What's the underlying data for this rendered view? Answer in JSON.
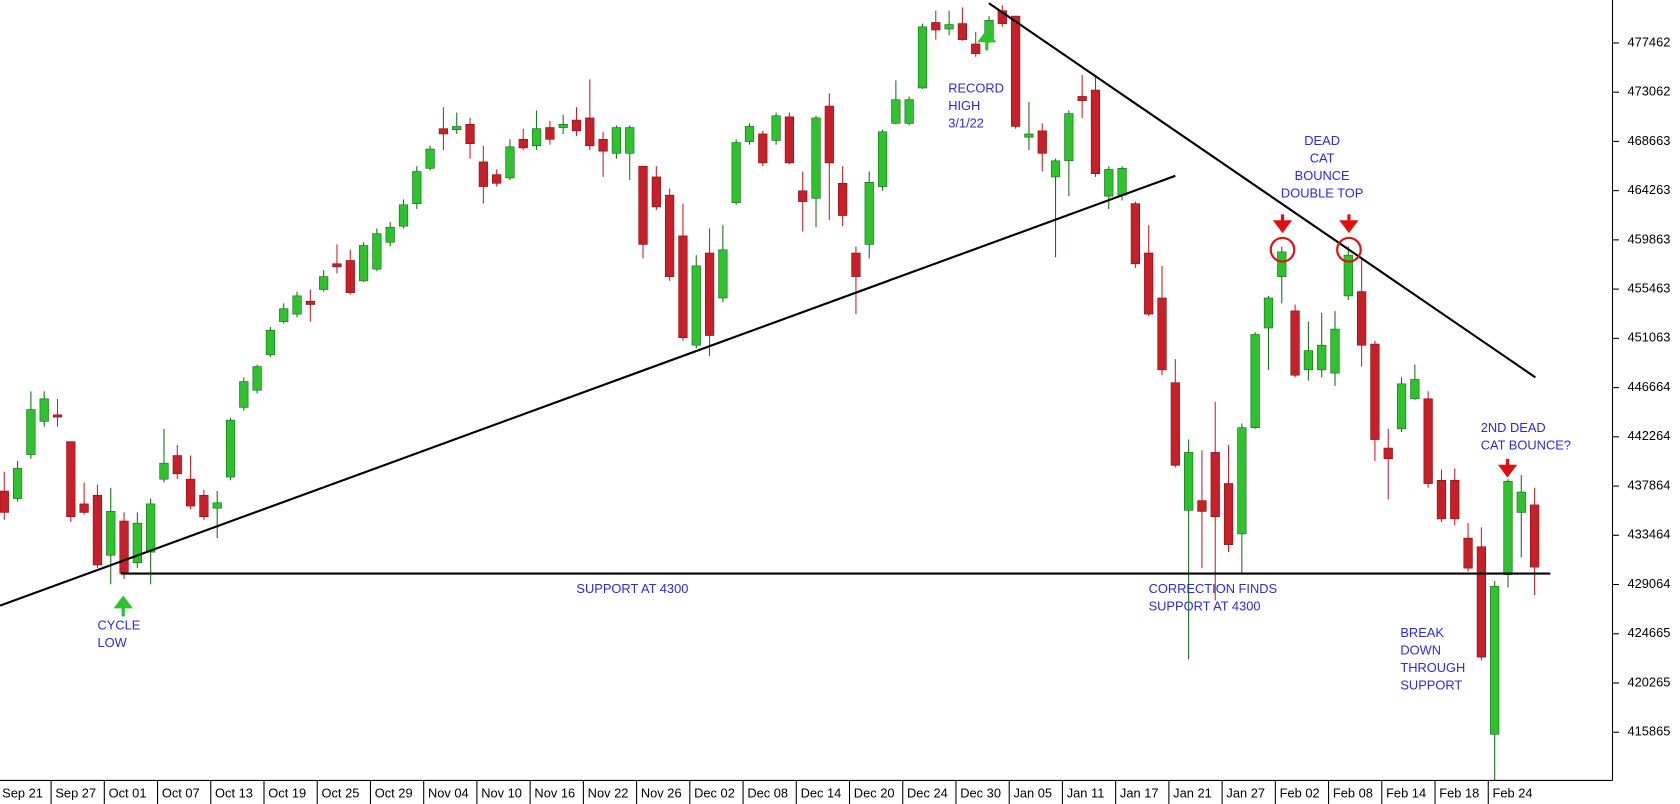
{
  "chart_data": {
    "type": "candlestick",
    "categories": [
      "Sep 21",
      null,
      null,
      null,
      "Sep 27",
      null,
      null,
      null,
      "Oct 01",
      null,
      null,
      null,
      "Oct 07",
      null,
      null,
      null,
      "Oct 13",
      null,
      null,
      null,
      "Oct 19",
      null,
      null,
      null,
      "Oct 25",
      null,
      null,
      null,
      "Oct 29",
      null,
      null,
      null,
      "Nov 04",
      null,
      null,
      null,
      "Nov 10",
      null,
      null,
      null,
      "Nov 16",
      null,
      null,
      null,
      "Nov 22",
      null,
      null,
      null,
      "Nov 26",
      null,
      null,
      null,
      "Dec 02",
      null,
      null,
      null,
      "Dec 08",
      null,
      null,
      null,
      "Dec 14",
      null,
      null,
      null,
      "Dec 20",
      null,
      null,
      null,
      "Dec 24",
      null,
      null,
      null,
      "Dec 30",
      null,
      null,
      null,
      "Jan 05",
      null,
      null,
      null,
      "Jan 11",
      null,
      null,
      null,
      "Jan 17",
      null,
      null,
      null,
      "Jan 21",
      null,
      null,
      null,
      "Jan 27",
      null,
      null,
      null,
      "Feb 02",
      null,
      null,
      null,
      "Feb 08",
      null,
      null,
      null,
      "Feb 14",
      null,
      null,
      null,
      "Feb 18",
      null,
      null,
      null,
      "Feb 24",
      null,
      null,
      null
    ],
    "open": [
      437420,
      436750,
      440680,
      443650,
      444230,
      441830,
      436270,
      437040,
      431680,
      434740,
      431010,
      431960,
      438480,
      440590,
      438480,
      437040,
      435890,
      438670,
      444900,
      446430,
      449590,
      452560,
      453230,
      454380,
      455430,
      457730,
      458020,
      456200,
      457250,
      459650,
      461090,
      463100,
      466260,
      469800,
      469710,
      470190,
      466830,
      465690,
      465400,
      468850,
      468270,
      469900,
      469900,
      470570,
      470760,
      468850,
      467600,
      467600,
      466450,
      465490,
      463860,
      460220,
      450450,
      458690,
      454670,
      463190,
      468650,
      469330,
      468750,
      470860,
      464250,
      463580,
      471820,
      464920,
      458690,
      459460,
      464630,
      470280,
      470280,
      473440,
      479290,
      478710,
      479190,
      477370,
      477760,
      480340,
      479860,
      469040,
      469610,
      465490,
      466930,
      472680,
      473250,
      463770,
      463860,
      463100,
      458690,
      454670,
      447100,
      435700,
      436560,
      440870,
      438090,
      433590,
      443080,
      451990,
      456580,
      453520,
      448250,
      448250,
      447960,
      454860,
      455240,
      450550,
      441260,
      442980,
      445660,
      445660,
      438380,
      438380,
      433210,
      432440,
      415680,
      429950,
      435510,
      436180
    ],
    "high": [
      439150,
      440110,
      446330,
      446330,
      445660,
      441830,
      438190,
      438000,
      437710,
      435510,
      435510,
      436750,
      442980,
      441540,
      440590,
      437520,
      437420,
      443940,
      447580,
      448730,
      452080,
      454190,
      455240,
      455430,
      457160,
      459460,
      458980,
      459650,
      460900,
      461470,
      463480,
      466450,
      468270,
      471720,
      471240,
      470760,
      468270,
      466160,
      468850,
      469800,
      471430,
      470480,
      471050,
      471720,
      474210,
      469520,
      470090,
      470090,
      466450,
      466450,
      464440,
      463100,
      458500,
      460900,
      461180,
      468850,
      470280,
      469610,
      471240,
      471240,
      465970,
      470950,
      472970,
      466450,
      459270,
      465970,
      469710,
      474120,
      472680,
      479190,
      480340,
      480340,
      480630,
      478430,
      479860,
      480820,
      479860,
      472200,
      470280,
      467120,
      471430,
      474590,
      474400,
      466450,
      466450,
      463290,
      461180,
      457540,
      449210,
      442020,
      441060,
      445380,
      441540,
      443460,
      451600,
      454860,
      459270,
      454090,
      452560,
      453330,
      453520,
      459270,
      458310,
      450840,
      442980,
      447580,
      448730,
      446330,
      439340,
      439440,
      434550,
      434170,
      429380,
      438480,
      438860,
      437710
    ],
    "low": [
      434840,
      436470,
      440300,
      443170,
      443170,
      434650,
      435320,
      430530,
      429090,
      429570,
      430530,
      429090,
      438190,
      438480,
      435800,
      434840,
      433210,
      438380,
      444610,
      446140,
      449400,
      452370,
      452940,
      452560,
      455240,
      456870,
      454960,
      456110,
      457060,
      459270,
      460900,
      462620,
      466070,
      467890,
      469330,
      467120,
      463100,
      464630,
      465210,
      467890,
      467890,
      468370,
      469330,
      469130,
      467890,
      465490,
      467120,
      465210,
      458210,
      462520,
      456200,
      450840,
      450170,
      449490,
      454280,
      463000,
      468370,
      466450,
      468370,
      466640,
      460610,
      460990,
      461660,
      461090,
      453230,
      458210,
      464250,
      470190,
      470090,
      473350,
      477760,
      478140,
      477660,
      476220,
      477470,
      478900,
      469800,
      467890,
      465970,
      458310,
      463770,
      470760,
      465490,
      462620,
      463390,
      457350,
      453040,
      447770,
      439530,
      422380,
      430530,
      427650,
      431960,
      430050,
      442980,
      448250,
      454190,
      447580,
      447290,
      447580,
      446810,
      454480,
      448540,
      440110,
      436660,
      442690,
      445570,
      437710,
      434650,
      434360,
      430240,
      422290,
      411560,
      428800,
      431480,
      428130
    ],
    "close": [
      435510,
      439440,
      444700,
      445660,
      444030,
      435120,
      435510,
      430810,
      435600,
      430050,
      434550,
      436270,
      439910,
      438960,
      436080,
      435120,
      436370,
      443750,
      447200,
      448540,
      451790,
      453710,
      454860,
      454090,
      456580,
      457450,
      455150,
      459360,
      460420,
      460990,
      463000,
      465970,
      467980,
      469330,
      470000,
      468460,
      464630,
      464920,
      468180,
      468080,
      469800,
      468850,
      470190,
      469610,
      468270,
      467790,
      469900,
      469900,
      459460,
      462810,
      456580,
      451120,
      457540,
      451320,
      458980,
      468560,
      470000,
      466740,
      470950,
      466740,
      463290,
      470760,
      466740,
      462040,
      456580,
      465010,
      469520,
      472390,
      472390,
      478900,
      478620,
      479100,
      477760,
      476510,
      479480,
      479190,
      470000,
      469330,
      467600,
      466930,
      471150,
      472300,
      465780,
      466160,
      466260,
      457730,
      453230,
      448250,
      439720,
      440870,
      435600,
      435120,
      432630,
      443080,
      451410,
      454670,
      458790,
      447770,
      449970,
      450450,
      451890,
      458500,
      450450,
      442020,
      440300,
      447000,
      447390,
      438090,
      434930,
      434930,
      430530,
      422580,
      428900,
      438290,
      437330,
      430620
    ],
    "up_color": "#2ec22e",
    "down_color": "#c8202a",
    "ylim": [
      411560,
      481300
    ],
    "yticks": [
      415865,
      420265,
      424665,
      429064,
      433464,
      437864,
      442264,
      446664,
      451063,
      455463,
      459863,
      464263,
      468663,
      473062,
      477462
    ],
    "annotations": [
      {
        "lines": [
          "RECORD",
          "HIGH",
          "3/1/22"
        ]
      },
      {
        "lines": [
          "CYCLE",
          "LOW"
        ]
      },
      {
        "lines": [
          "SUPPORT AT 4300"
        ]
      },
      {
        "lines": [
          "CORRECTION FINDS",
          "SUPPORT AT 4300"
        ]
      },
      {
        "lines": [
          "DEAD",
          "CAT",
          "BOUNCE",
          "DOUBLE TOP"
        ]
      },
      {
        "lines": [
          "BREAK",
          "DOWN",
          "THROUGH",
          "SUPPORT"
        ]
      },
      {
        "lines": [
          "2ND DEAD",
          "CAT BOUNCE?"
        ]
      }
    ]
  }
}
